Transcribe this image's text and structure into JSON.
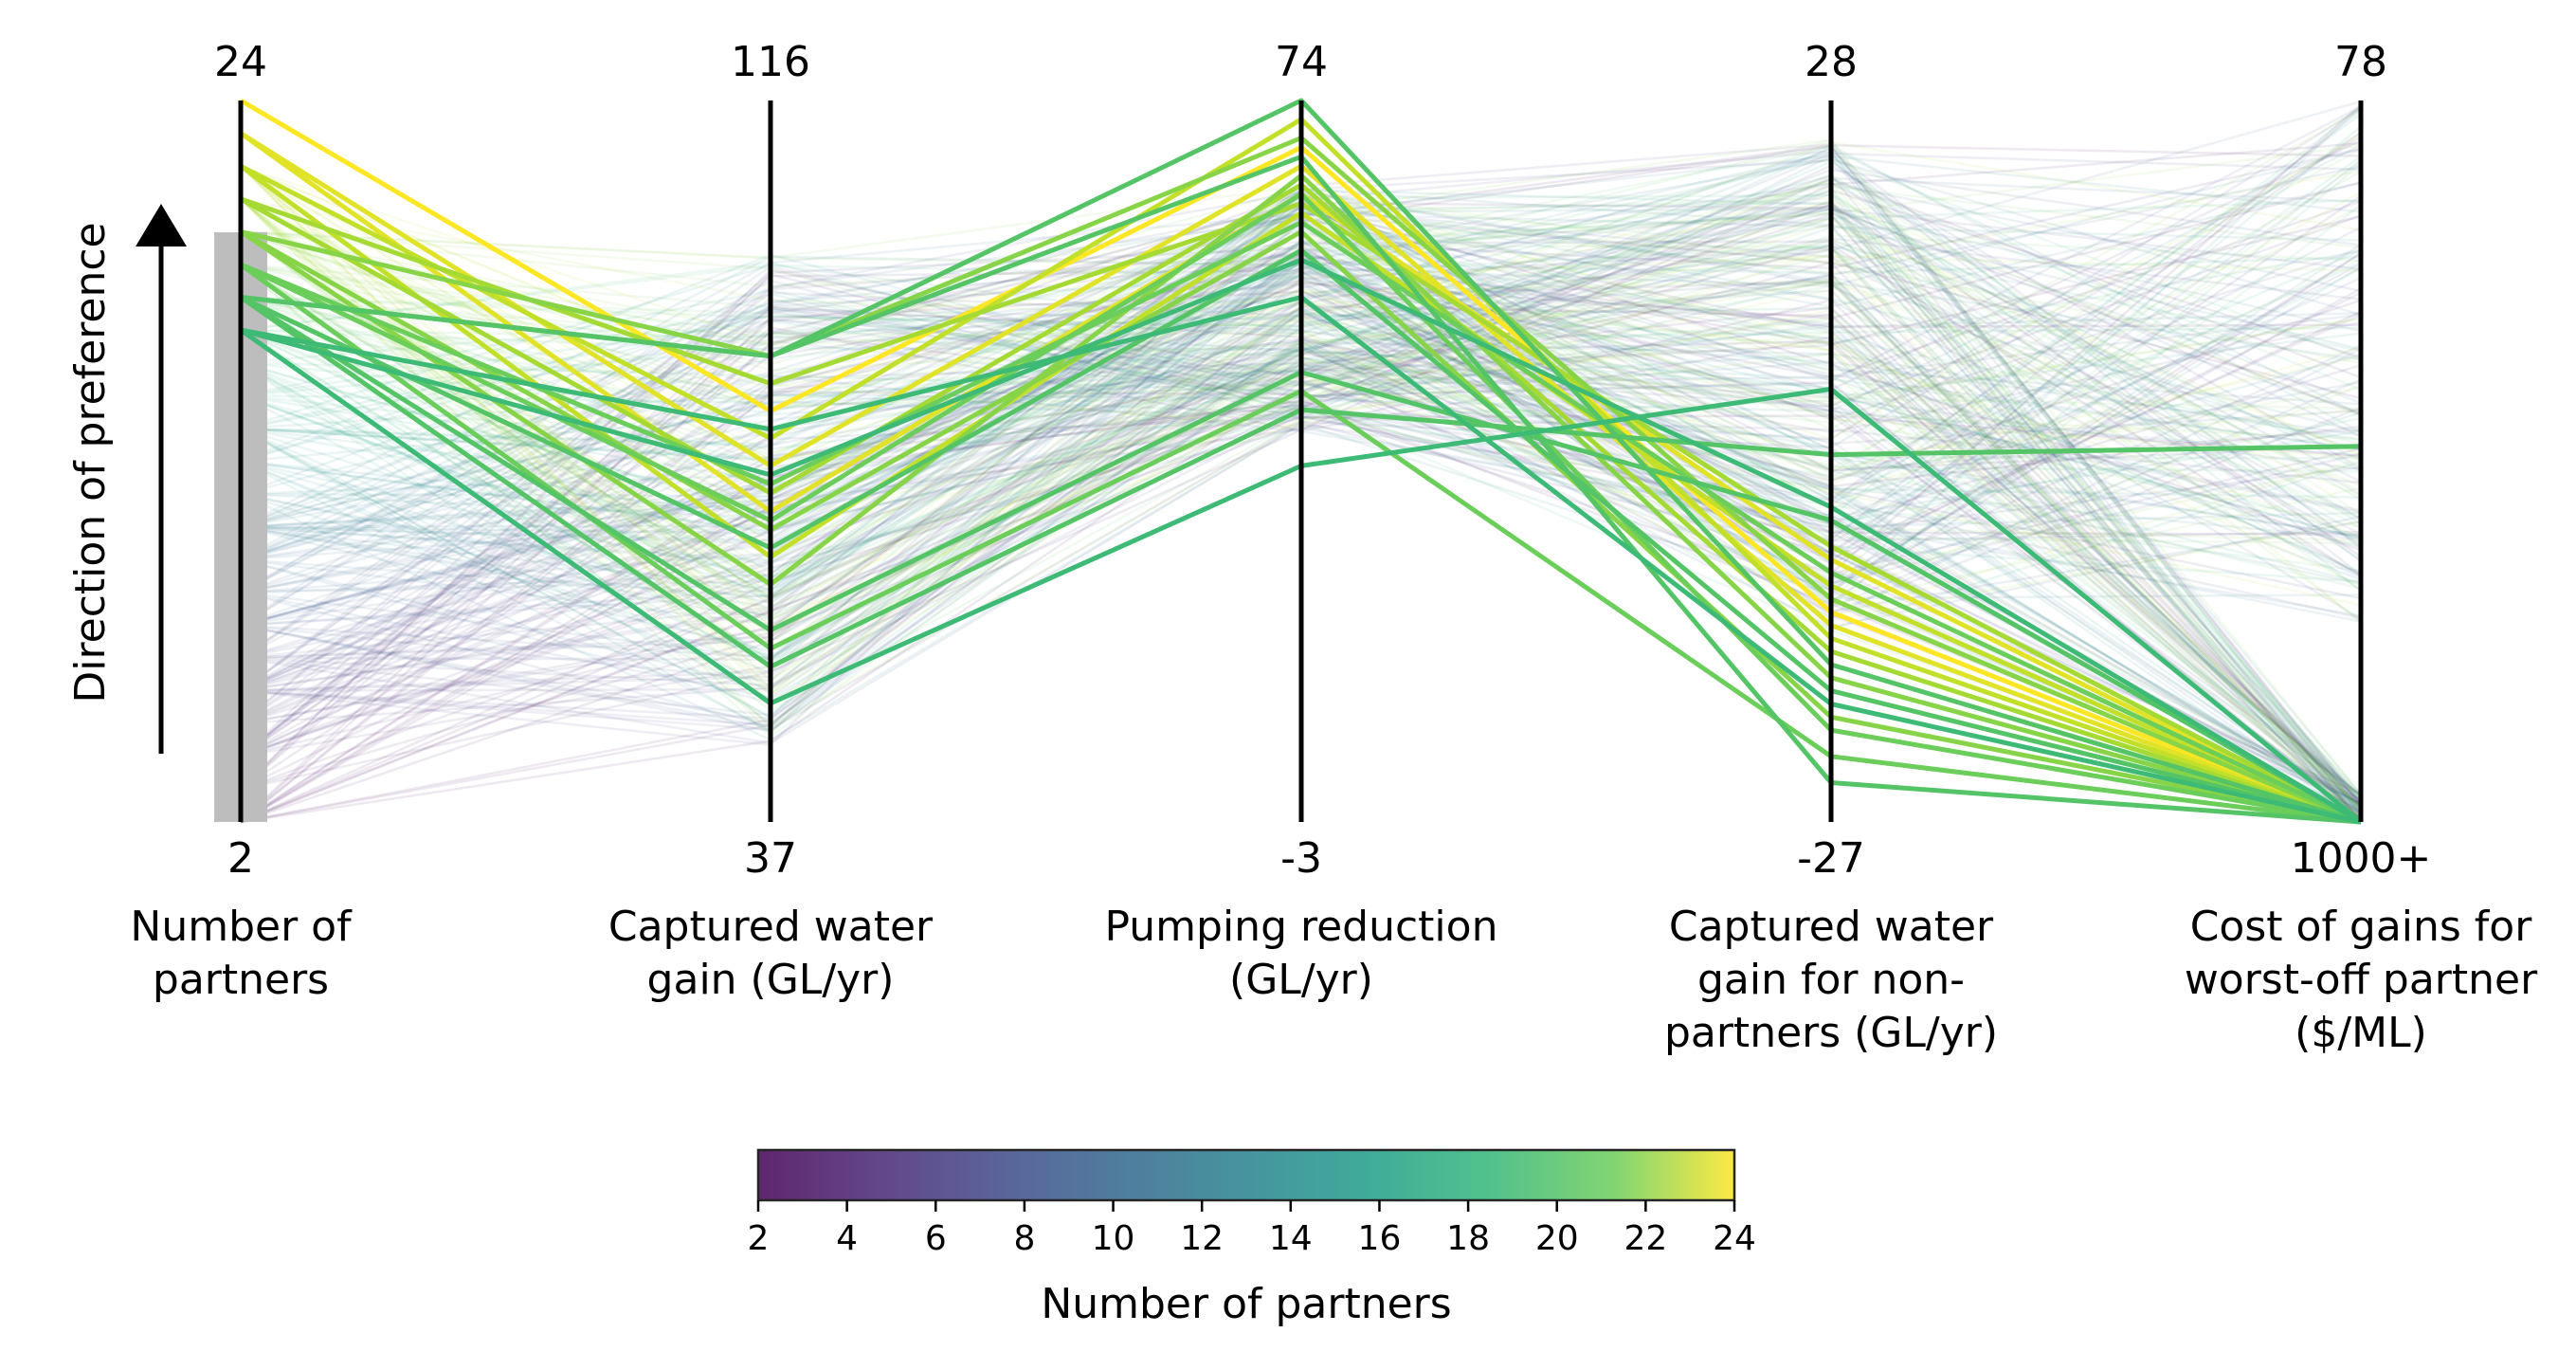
{
  "chart_data": {
    "type": "parallel_coordinates",
    "axes": [
      {
        "label_lines": [
          "Number of",
          "partners"
        ],
        "top": "24",
        "bottom": "2",
        "min": 2,
        "max": 24
      },
      {
        "label_lines": [
          "Captured water",
          "gain (GL/yr)"
        ],
        "top": "116",
        "bottom": "37",
        "min": 37,
        "max": 116
      },
      {
        "label_lines": [
          "Pumping reduction",
          "(GL/yr)"
        ],
        "top": "74",
        "bottom": "-3",
        "min": -3,
        "max": 74
      },
      {
        "label_lines": [
          "Captured water",
          "gain for non-",
          "partners (GL/yr)"
        ],
        "top": "28",
        "bottom": "-27",
        "min": -27,
        "max": 28
      },
      {
        "label_lines": [
          "Cost of gains for",
          "worst-off partner",
          "($/ML)"
        ],
        "top": "78",
        "bottom": "1000+",
        "min": 78,
        "max": 1000,
        "reversed": true
      }
    ],
    "direction_label": "Direction of preference",
    "colorbar": {
      "label": "Number of partners",
      "min": 2,
      "max": 24,
      "ticks": [
        "2",
        "4",
        "6",
        "8",
        "10",
        "12",
        "14",
        "16",
        "18",
        "20",
        "22",
        "24"
      ],
      "colormap": "viridis"
    },
    "highlighted_lines": [
      {
        "partners": 24,
        "values": [
          24,
          82,
          69,
          -11,
          1000
        ]
      },
      {
        "partners": 23,
        "values": [
          23,
          76,
          67,
          -12,
          1000
        ]
      },
      {
        "partners": 23,
        "values": [
          23,
          71,
          64,
          -7,
          1000
        ]
      },
      {
        "partners": 22,
        "values": [
          22,
          66,
          62,
          -9,
          1000
        ]
      },
      {
        "partners": 22,
        "values": [
          22,
          79,
          72,
          -13,
          1000
        ]
      },
      {
        "partners": 21,
        "values": [
          21,
          73,
          65,
          -14,
          1000
        ]
      },
      {
        "partners": 21,
        "values": [
          21,
          85,
          63,
          -6,
          1000
        ]
      },
      {
        "partners": 20,
        "values": [
          20,
          69,
          60,
          -19,
          1000
        ]
      },
      {
        "partners": 20,
        "values": [
          20,
          63,
          66,
          -16,
          1000
        ]
      },
      {
        "partners": 20,
        "values": [
          20,
          88,
          70,
          -10,
          1000
        ]
      },
      {
        "partners": 19,
        "values": [
          19,
          74,
          61,
          -8,
          1000
        ]
      },
      {
        "partners": 19,
        "values": [
          19,
          56,
          43,
          -22,
          1000
        ]
      },
      {
        "partners": 19,
        "values": [
          19,
          70,
          64,
          -20,
          1000
        ]
      },
      {
        "partners": 18,
        "values": [
          18,
          67,
          58,
          -17,
          1000
        ]
      },
      {
        "partners": 18,
        "values": [
          18,
          58,
          45,
          -4,
          1000
        ]
      },
      {
        "partners": 18,
        "values": [
          18,
          88,
          74,
          -15,
          1000
        ]
      },
      {
        "partners": 18,
        "values": [
          18,
          88,
          68,
          -24,
          1000
        ]
      },
      {
        "partners": 18,
        "values": [
          18,
          54,
          41,
          1,
          520
        ]
      },
      {
        "partners": 17,
        "values": [
          17,
          75,
          57,
          -3,
          1000
        ]
      },
      {
        "partners": 17,
        "values": [
          17,
          80,
          53,
          -18,
          1000
        ]
      },
      {
        "partners": 17,
        "values": [
          17,
          50,
          35,
          6,
          1000
        ]
      }
    ]
  }
}
